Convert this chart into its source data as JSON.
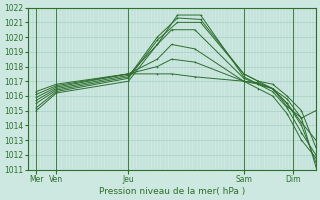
{
  "xlabel": "Pression niveau de la mer( hPa )",
  "bg_color": "#cde8e0",
  "grid_color": "#aacfc8",
  "line_color": "#2d6e2d",
  "ylim": [
    1011,
    1022
  ],
  "yticks": [
    1011,
    1012,
    1013,
    1014,
    1015,
    1016,
    1017,
    1018,
    1019,
    1020,
    1021,
    1022
  ],
  "xlim": [
    0,
    10.0
  ],
  "xtick_positions": [
    0.3,
    1.0,
    3.5,
    7.5,
    9.2
  ],
  "xtick_labels": [
    "Mer",
    "Ven",
    "Jeu",
    "Sam",
    "Dim"
  ],
  "vlines": [
    0.3,
    1.0,
    3.5,
    7.5,
    9.2
  ],
  "lines": [
    {
      "x": [
        0.3,
        1.0,
        3.5,
        4.5,
        5.2,
        6.0,
        7.5,
        8.0,
        8.5,
        9.0,
        9.5,
        10.0
      ],
      "y": [
        1015.0,
        1016.2,
        1017.0,
        1019.5,
        1021.5,
        1021.5,
        1017.3,
        1016.8,
        1016.5,
        1015.8,
        1014.5,
        1011.2
      ]
    },
    {
      "x": [
        0.3,
        1.0,
        3.5,
        4.5,
        5.2,
        6.0,
        7.5,
        8.0,
        8.5,
        9.0,
        9.5,
        10.0
      ],
      "y": [
        1015.2,
        1016.3,
        1017.2,
        1019.8,
        1021.0,
        1021.0,
        1017.5,
        1017.0,
        1016.8,
        1016.0,
        1015.0,
        1012.5
      ]
    },
    {
      "x": [
        0.3,
        1.0,
        3.5,
        4.5,
        5.2,
        6.0,
        7.5,
        8.0,
        8.5,
        9.0,
        9.5,
        10.0
      ],
      "y": [
        1015.5,
        1016.4,
        1017.3,
        1020.0,
        1021.3,
        1021.2,
        1017.5,
        1017.0,
        1016.5,
        1015.5,
        1014.0,
        1011.5
      ]
    },
    {
      "x": [
        0.3,
        1.0,
        3.5,
        4.5,
        5.0,
        5.8,
        7.5,
        8.0,
        8.5,
        9.0,
        9.5,
        10.0
      ],
      "y": [
        1015.7,
        1016.5,
        1017.4,
        1019.5,
        1020.5,
        1020.5,
        1017.2,
        1016.8,
        1016.3,
        1015.2,
        1013.5,
        1012.0
      ]
    },
    {
      "x": [
        0.3,
        1.0,
        3.5,
        4.5,
        5.0,
        5.8,
        7.5,
        8.0,
        8.5,
        9.0,
        9.5,
        10.0
      ],
      "y": [
        1015.9,
        1016.6,
        1017.5,
        1018.5,
        1019.5,
        1019.2,
        1017.0,
        1016.5,
        1016.0,
        1014.8,
        1013.0,
        1011.8
      ]
    },
    {
      "x": [
        0.3,
        1.0,
        3.5,
        4.5,
        5.0,
        5.8,
        7.5,
        8.0,
        8.5,
        9.0,
        9.5,
        10.0
      ],
      "y": [
        1016.1,
        1016.7,
        1017.5,
        1018.0,
        1018.5,
        1018.3,
        1017.0,
        1016.8,
        1016.5,
        1015.5,
        1014.2,
        1013.0
      ]
    },
    {
      "x": [
        0.3,
        1.0,
        3.5,
        4.5,
        5.0,
        5.8,
        7.5,
        8.0,
        8.5,
        9.0,
        9.5,
        10.0
      ],
      "y": [
        1016.3,
        1016.8,
        1017.5,
        1017.5,
        1017.5,
        1017.3,
        1017.0,
        1016.9,
        1016.5,
        1015.3,
        1014.5,
        1015.0
      ]
    }
  ]
}
